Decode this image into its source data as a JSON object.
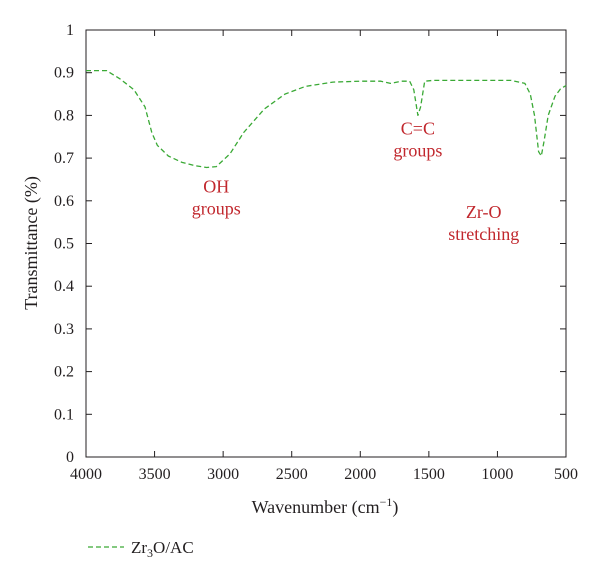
{
  "chart_data": {
    "type": "line",
    "title": "",
    "xlabel": "Wavenumber (cm",
    "xlabel_sup": "−1",
    "xlabel_close": ")",
    "ylabel": "Transmittance (%)",
    "xlim": [
      4000,
      500
    ],
    "ylim": [
      0,
      1
    ],
    "x_reversed": true,
    "x_ticks": [
      4000,
      3500,
      3000,
      2500,
      2000,
      1500,
      1000,
      500
    ],
    "x_tick_labels": [
      "4000",
      "3500",
      "3000",
      "2500",
      "2000",
      "1500",
      "1000",
      "500"
    ],
    "y_ticks": [
      0,
      0.1,
      0.2,
      0.3,
      0.4,
      0.5,
      0.6,
      0.7,
      0.8,
      0.9,
      1
    ],
    "y_tick_labels": [
      "0",
      "0.1",
      "0.2",
      "0.3",
      "0.4",
      "0.5",
      "0.6",
      "0.7",
      "0.8",
      "0.9",
      "1"
    ],
    "grid": false,
    "legend_position": "bottom-left",
    "series": [
      {
        "name": "Zr3O/AC",
        "legend_main": "Zr",
        "legend_sub": "3",
        "legend_rest": "O/AC",
        "color": "#3aa935",
        "dash": "dashed",
        "x": [
          4000,
          3950,
          3850,
          3750,
          3650,
          3570,
          3520,
          3480,
          3400,
          3300,
          3200,
          3120,
          3050,
          2950,
          2850,
          2700,
          2550,
          2400,
          2200,
          2000,
          1850,
          1780,
          1700,
          1640,
          1610,
          1580,
          1560,
          1530,
          1470,
          1300,
          1100,
          900,
          800,
          760,
          730,
          700,
          680,
          660,
          630,
          580,
          540,
          500
        ],
        "y": [
          0.905,
          0.905,
          0.905,
          0.885,
          0.86,
          0.82,
          0.76,
          0.73,
          0.705,
          0.69,
          0.682,
          0.678,
          0.68,
          0.71,
          0.76,
          0.815,
          0.85,
          0.868,
          0.878,
          0.88,
          0.88,
          0.875,
          0.88,
          0.88,
          0.86,
          0.8,
          0.82,
          0.88,
          0.882,
          0.882,
          0.882,
          0.882,
          0.875,
          0.85,
          0.8,
          0.715,
          0.705,
          0.74,
          0.8,
          0.845,
          0.862,
          0.87
        ]
      }
    ],
    "annotations": [
      {
        "lines": [
          "OH",
          "groups"
        ],
        "x": 3050,
        "y": 0.62
      },
      {
        "lines": [
          "C=C",
          "groups"
        ],
        "x": 1580,
        "y": 0.755
      },
      {
        "lines": [
          "Zr-O",
          "stretching"
        ],
        "x": 1100,
        "y": 0.56
      }
    ]
  }
}
